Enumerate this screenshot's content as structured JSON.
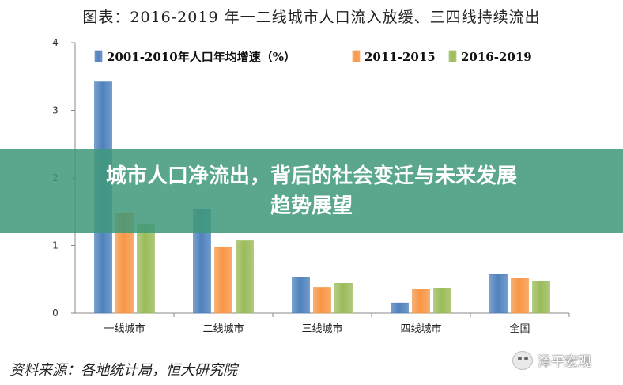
{
  "chart_data": {
    "type": "bar",
    "title": "图表：2016-2019 年一二线城市人口流入放缓、三四线持续流出",
    "categories": [
      "一线城市",
      "二线城市",
      "三线城市",
      "四线城市",
      "全国"
    ],
    "series": [
      {
        "name": "2001-2010年人口年均增速（%）",
        "color": "#4f81bd",
        "values": [
          3.42,
          1.53,
          0.53,
          0.15,
          0.57
        ]
      },
      {
        "name": "2011-2015",
        "color": "#f79646",
        "values": [
          1.47,
          0.97,
          0.38,
          0.35,
          0.51
        ]
      },
      {
        "name": "2016-2019",
        "color": "#9bbb59",
        "values": [
          1.32,
          1.07,
          0.44,
          0.37,
          0.47
        ]
      }
    ],
    "ylim": [
      0,
      4
    ],
    "yticks": [
      "0",
      "1",
      "2",
      "3",
      "4"
    ],
    "legend": "top",
    "grid": false
  },
  "banner": {
    "line1": "城市人口净流出，背后的社会变迁与未来发展",
    "line2": "趋势展望"
  },
  "source": "资料来源：各地统计局，恒大研究院",
  "watermark": "泽平宏观"
}
